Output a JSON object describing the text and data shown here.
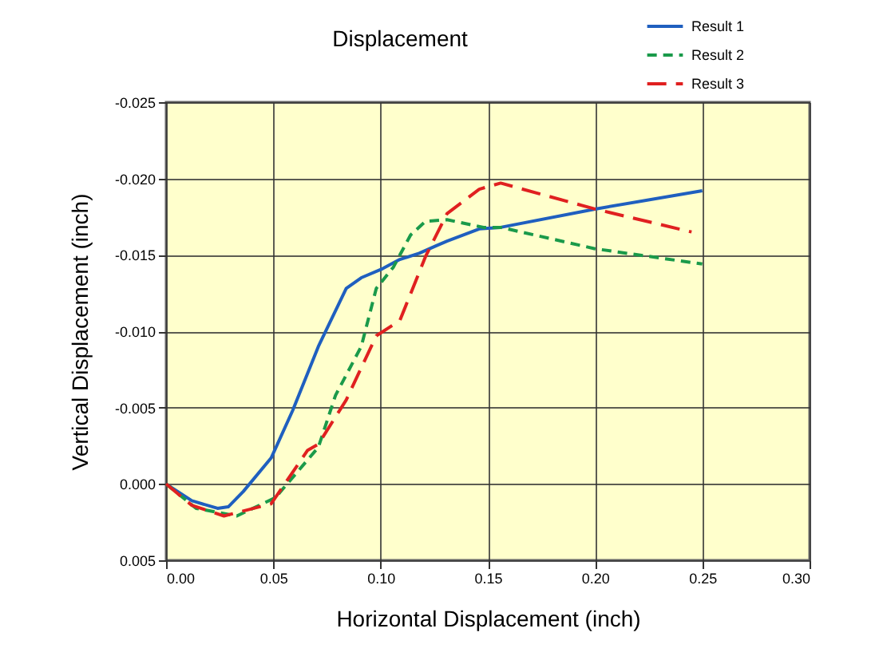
{
  "chart_data": {
    "type": "line",
    "title": "Displacement",
    "xlabel": "Horizontal Displacement (inch)",
    "ylabel": "Vertical Displacement (inch)",
    "xlim": [
      0,
      0.3
    ],
    "xticks": [
      {
        "value": 0,
        "label": "0.00"
      },
      {
        "value": 0.05,
        "label": "0.05"
      },
      {
        "value": 0.1,
        "label": "0.10"
      },
      {
        "value": 0.15,
        "label": "0.15"
      },
      {
        "value": 0.2,
        "label": "0.20"
      },
      {
        "value": 0.25,
        "label": "0.25"
      },
      {
        "value": 0.3,
        "label": "0.30"
      }
    ],
    "ylim": [
      0.005,
      -0.025
    ],
    "yticks": [
      {
        "value": -0.025,
        "label": "-0.025"
      },
      {
        "value": -0.02,
        "label": "-0.020"
      },
      {
        "value": -0.015,
        "label": "-0.015"
      },
      {
        "value": -0.01,
        "label": "-0.010"
      },
      {
        "value": -0.005,
        "label": "-0.005"
      },
      {
        "value": 0,
        "label": "0.000"
      },
      {
        "value": 0.005,
        "label": "0.005"
      }
    ],
    "grid": true,
    "legend": "top right",
    "marker": "none",
    "series": [
      {
        "name": "Result 1",
        "color": "#1f5fbf",
        "line_style": "solid",
        "x": [
          0,
          0.012,
          0.024,
          0.029,
          0.036,
          0.049,
          0.059,
          0.071,
          0.084,
          0.091,
          0.101,
          0.109,
          0.118,
          0.126,
          0.131,
          0.146,
          0.156,
          0.2,
          0.25
        ],
        "values": [
          0,
          0.0011,
          0.0016,
          0.0015,
          0.0005,
          -0.0017,
          -0.0048,
          -0.009,
          -0.0128,
          -0.0135,
          -0.0141,
          -0.0147,
          -0.0151,
          -0.0156,
          -0.0159,
          -0.0167,
          -0.0168,
          -0.018,
          -0.0192
        ]
      },
      {
        "name": "Result 2",
        "color": "#1a9a4a",
        "line_style": "dashed",
        "x": [
          0,
          0.014,
          0.033,
          0.051,
          0.071,
          0.079,
          0.091,
          0.098,
          0.106,
          0.114,
          0.121,
          0.131,
          0.148,
          0.156,
          0.2,
          0.25
        ],
        "values": [
          0,
          0.0016,
          0.0021,
          0.0009,
          -0.0024,
          -0.0058,
          -0.009,
          -0.0128,
          -0.0142,
          -0.0163,
          -0.0172,
          -0.0173,
          -0.0168,
          -0.0168,
          -0.0154,
          -0.0144
        ]
      },
      {
        "name": "Result 3",
        "color": "#e02020",
        "line_style": "dashed",
        "x": [
          0,
          0.012,
          0.027,
          0.049,
          0.066,
          0.071,
          0.084,
          0.098,
          0.109,
          0.121,
          0.131,
          0.146,
          0.156,
          0.2,
          0.245
        ],
        "values": [
          0,
          0.0014,
          0.0021,
          0.0013,
          -0.0022,
          -0.0026,
          -0.0055,
          -0.0097,
          -0.0107,
          -0.0149,
          -0.0177,
          -0.0193,
          -0.0197,
          -0.018,
          -0.0165
        ]
      }
    ]
  }
}
